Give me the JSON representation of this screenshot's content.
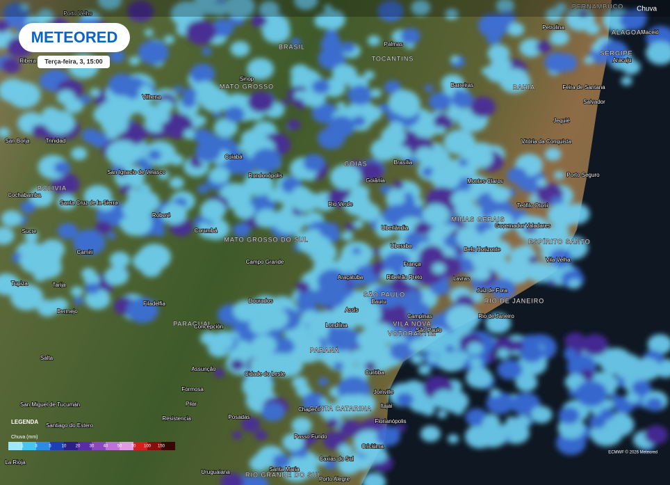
{
  "logo": "METEORED",
  "timestamp": "Terça-feira, 3, 15:00",
  "layer": "Chuva",
  "credit": "ECMWF © 2026 Meteored",
  "legend": {
    "title": "LEGENDA",
    "unit": "Chuva (mm)",
    "scale": [
      "1",
      "3",
      "5",
      "10",
      "20",
      "30",
      "40",
      "50",
      "70",
      "100",
      "150"
    ]
  },
  "places": [
    "Porto Velho",
    "PERNAMBUCO",
    "Petrolina",
    "Palmas",
    "ALAGOAS",
    "Maceió",
    "BRASIL",
    "TOCANTINS",
    "SERGIPE",
    "Aracaju",
    "Ribera",
    "Sinop",
    "MATO GROSSO",
    "Barreiras",
    "BAHIA",
    "Feira de Santana",
    "Vilhena",
    "Salvador",
    "Jequié",
    "San Borja",
    "Trinidad",
    "Vitória da Conquista",
    "Cuiabá",
    "Brasília",
    "GOIÁS",
    "San Ignacio de Velasco",
    "Rondonópolis",
    "Goiânia",
    "Montes Claros",
    "Porto Seguro",
    "BOLIVIA",
    "Cochabamba",
    "Santa Cruz de la Sierra",
    "Rio Verde",
    "Teófilo Otoni",
    "Roboré",
    "MINAS GERAIS",
    "Governador Valadares",
    "Sucre",
    "Corumbá",
    "Uberlândia",
    "MATO GROSSO DO SUL",
    "ESPÍRITO SANTO",
    "Uberaba",
    "Belo Horizonte",
    "Camiri",
    "Campo Grande",
    "França",
    "Vila Velha",
    "Araçatuba",
    "Ribeirão Preto",
    "Lavras",
    "Tupiza",
    "Tarija",
    "Juiz de Fora",
    "SÃO PAULO",
    "Dourados",
    "RIO DE JANEIRO",
    "Filadelfia",
    "Bauru",
    "Assis",
    "Bermejo",
    "Campinas",
    "Rio de Janeiro",
    "PARAGUAI",
    "Concepción",
    "Londrina",
    "VILA NOVA",
    "VOTORANTIM",
    "São Paulo",
    "PARANÁ",
    "Salta",
    "Assunção",
    "Cidade do Leste",
    "Curitiba",
    "Formosa",
    "Joinville",
    "San Miguel de Tucumán",
    "Pilar",
    "Itajaí",
    "SANTA CATARINA",
    "Chapecó",
    "Posadas",
    "Resistencia",
    "Florianópolis",
    "Santiago do Estero",
    "Passo Fundo",
    "Criciúma",
    "Caxias do Sul",
    "La Rioja",
    "Santa Maria",
    "Uruguaiana",
    "RIO GRANDE DO SUL",
    "Porto Alegre"
  ]
}
